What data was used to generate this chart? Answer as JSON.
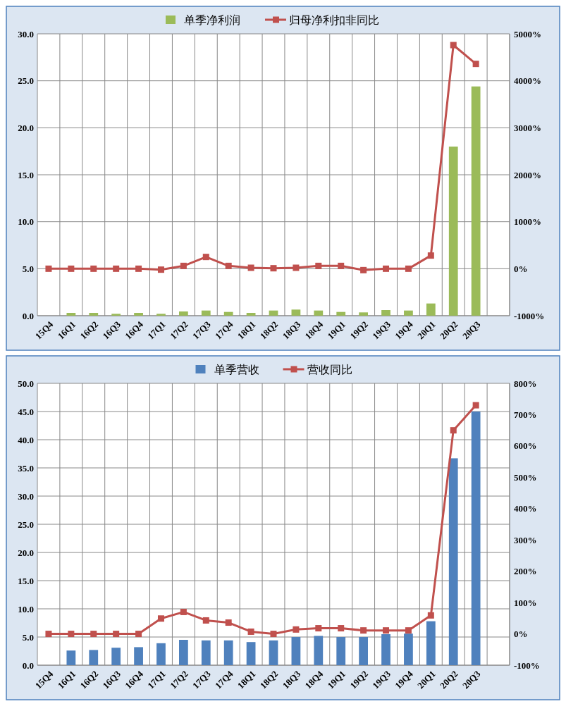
{
  "chart_data": [
    {
      "type": "bar",
      "categories": [
        "15Q4",
        "16Q1",
        "16Q2",
        "16Q3",
        "16Q4",
        "17Q1",
        "17Q2",
        "17Q3",
        "17Q4",
        "18Q1",
        "18Q2",
        "18Q3",
        "18Q4",
        "19Q1",
        "19Q2",
        "19Q3",
        "19Q4",
        "20Q1",
        "20Q2",
        "20Q3",
        null
      ],
      "series": [
        {
          "name": "单季净利润",
          "color": "#9bbb59",
          "values": [
            null,
            0.3,
            0.3,
            0.2,
            0.3,
            0.2,
            0.45,
            0.55,
            0.4,
            0.3,
            0.55,
            0.65,
            0.55,
            0.4,
            0.35,
            0.6,
            0.55,
            1.3,
            18.0,
            24.4,
            null
          ]
        },
        {
          "name": "归母净利扣非同比",
          "type": "line",
          "axis": "y2",
          "color": "#c0504d",
          "values": [
            0,
            0,
            0,
            0,
            0,
            -20,
            60,
            250,
            60,
            20,
            10,
            20,
            60,
            60,
            -30,
            0,
            0,
            280,
            4760,
            4360,
            null
          ]
        }
      ],
      "ylim": [
        0,
        30
      ],
      "yticks": [
        {
          "value": 0,
          "label": "0.0"
        },
        {
          "value": 5,
          "label": "5.0"
        },
        {
          "value": 10,
          "label": "10.0"
        },
        {
          "value": 15,
          "label": "15.0"
        },
        {
          "value": 20,
          "label": "20.0"
        },
        {
          "value": 25,
          "label": "25.0"
        },
        {
          "value": 30,
          "label": "30.0"
        }
      ],
      "y2lim": [
        -1000,
        5000
      ],
      "y2ticks": [
        {
          "value": -1000,
          "label": "-1000%"
        },
        {
          "value": 0,
          "label": "0%"
        },
        {
          "value": 1000,
          "label": "1000%"
        },
        {
          "value": 2000,
          "label": "2000%"
        },
        {
          "value": 3000,
          "label": "3000%"
        },
        {
          "value": 4000,
          "label": "4000%"
        },
        {
          "value": 5000,
          "label": "5000%"
        }
      ],
      "grid": true,
      "legend": "top",
      "marker": "square"
    },
    {
      "type": "bar",
      "categories": [
        "15Q4",
        "16Q1",
        "16Q2",
        "16Q3",
        "16Q4",
        "17Q1",
        "17Q2",
        "17Q3",
        "17Q4",
        "18Q1",
        "18Q2",
        "18Q3",
        "18Q4",
        "19Q1",
        "19Q2",
        "19Q3",
        "19Q4",
        "20Q1",
        "20Q2",
        "20Q3",
        null
      ],
      "series": [
        {
          "name": "单季营收",
          "color": "#4f81bd",
          "values": [
            null,
            2.6,
            2.7,
            3.1,
            3.2,
            3.9,
            4.5,
            4.4,
            4.4,
            4.1,
            4.4,
            5.0,
            5.2,
            5.0,
            5.0,
            5.5,
            5.6,
            7.8,
            36.7,
            45.0,
            null
          ]
        },
        {
          "name": "营收同比",
          "type": "line",
          "axis": "y2",
          "color": "#c0504d",
          "values": [
            0,
            0,
            0,
            0,
            0,
            49,
            70,
            43,
            36,
            7,
            0,
            14,
            18,
            18,
            11,
            11,
            11,
            59,
            650,
            730,
            null
          ]
        }
      ],
      "ylim": [
        0,
        50
      ],
      "yticks": [
        {
          "value": 0,
          "label": "0.0"
        },
        {
          "value": 5,
          "label": "5.0"
        },
        {
          "value": 10,
          "label": "10.0"
        },
        {
          "value": 15,
          "label": "15.0"
        },
        {
          "value": 20,
          "label": "20.0"
        },
        {
          "value": 25,
          "label": "25.0"
        },
        {
          "value": 30,
          "label": "30.0"
        },
        {
          "value": 35,
          "label": "35.0"
        },
        {
          "value": 40,
          "label": "40.0"
        },
        {
          "value": 45,
          "label": "45.0"
        },
        {
          "value": 50,
          "label": "50.0"
        }
      ],
      "y2lim": [
        -100,
        800
      ],
      "y2ticks": [
        {
          "value": -100,
          "label": "-100%"
        },
        {
          "value": 0,
          "label": "0%"
        },
        {
          "value": 100,
          "label": "100%"
        },
        {
          "value": 200,
          "label": "200%"
        },
        {
          "value": 300,
          "label": "300%"
        },
        {
          "value": 400,
          "label": "400%"
        },
        {
          "value": 500,
          "label": "500%"
        },
        {
          "value": 600,
          "label": "600%"
        },
        {
          "value": 700,
          "label": "700%"
        },
        {
          "value": 800,
          "label": "800%"
        }
      ],
      "grid": true,
      "legend": "top",
      "marker": "square"
    }
  ]
}
